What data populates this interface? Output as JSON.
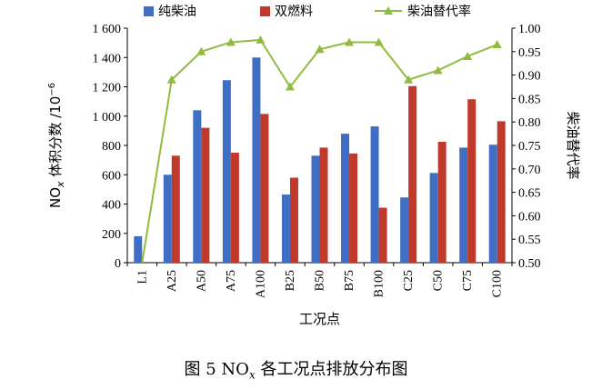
{
  "chart_data": {
    "type": "bar",
    "categories": [
      "L1",
      "A25",
      "A50",
      "A75",
      "A100",
      "B25",
      "B50",
      "B75",
      "B100",
      "C25",
      "C50",
      "C75",
      "C100"
    ],
    "series": [
      {
        "name": "纯柴油",
        "kind": "bar",
        "axis": "left",
        "color": "#3e6fc4",
        "values": [
          180,
          600,
          1040,
          1245,
          1400,
          465,
          730,
          880,
          930,
          445,
          612,
          785,
          805
        ]
      },
      {
        "name": "双燃料",
        "kind": "bar",
        "axis": "left",
        "color": "#c0392b",
        "values": [
          null,
          730,
          920,
          750,
          1015,
          580,
          785,
          745,
          375,
          1205,
          825,
          1115,
          965
        ]
      },
      {
        "name": "柴油替代率",
        "kind": "line",
        "axis": "right",
        "color": "#8fbc3f",
        "values": [
          null,
          0.89,
          0.95,
          0.97,
          0.975,
          0.875,
          0.955,
          0.97,
          0.97,
          0.89,
          0.91,
          0.94,
          0.965
        ]
      }
    ],
    "ylim_left": [
      0,
      1600
    ],
    "yticks_left": [
      "0",
      "200",
      "400",
      "600",
      "800",
      "1 000",
      "1 200",
      "1 400",
      "1 600"
    ],
    "ylim_right": [
      0.5,
      1.0
    ],
    "yticks_right": [
      "0.50",
      "0.55",
      "0.60",
      "0.65",
      "0.70",
      "0.75",
      "0.80",
      "0.85",
      "0.90",
      "0.95",
      "1.00"
    ],
    "line_start_value": 0.5,
    "xlabel": "工况点",
    "ylabel_main": "NO",
    "ylabel_sub": "x",
    "ylabel_rest": " 体积分数 /10",
    "ylabel_exp": "−6",
    "ylabel_right": "柴油替代率",
    "grid": false,
    "legend_position": "top"
  },
  "caption": {
    "prefix": "图 5   NO",
    "sub": "x",
    "suffix": " 各工况点排放分布图"
  }
}
